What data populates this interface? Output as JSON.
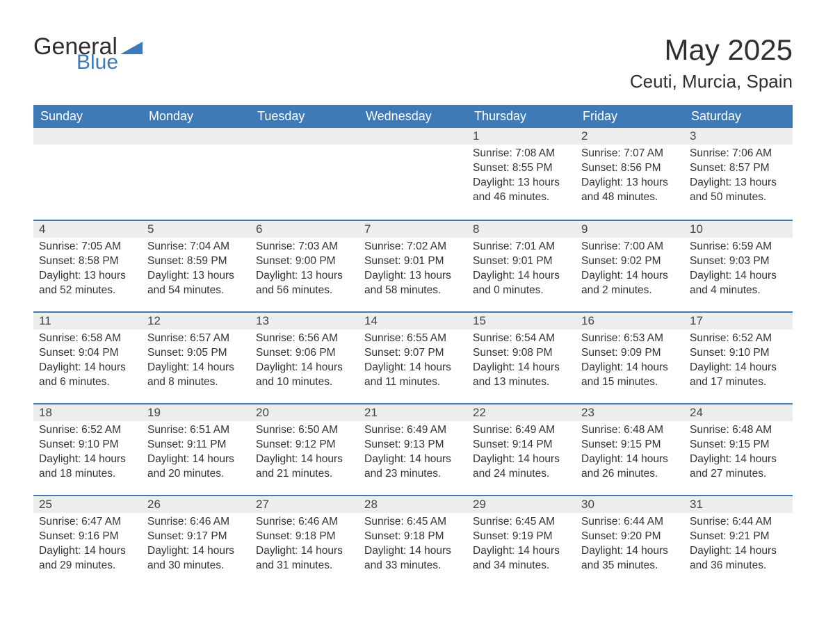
{
  "brand": {
    "text_general": "General",
    "text_blue": "Blue",
    "triangle_color": "#3e7ab8",
    "text_color_general": "#2f2f2f",
    "text_color_blue": "#3e7ab8"
  },
  "title": "May 2025",
  "subtitle": "Ceuti, Murcia, Spain",
  "colors": {
    "header_bg": "#3e7ab8",
    "header_text": "#ffffff",
    "daynum_bg": "#ededed",
    "body_text": "#333333",
    "week_divider": "#3e7ab8",
    "page_bg": "#ffffff"
  },
  "fontsize": {
    "title": 42,
    "subtitle": 26,
    "header": 18,
    "daynum": 17,
    "body": 15.5
  },
  "layout": {
    "columns": 7,
    "rows": 5,
    "first_day_column_index": 4
  },
  "weekdays": [
    "Sunday",
    "Monday",
    "Tuesday",
    "Wednesday",
    "Thursday",
    "Friday",
    "Saturday"
  ],
  "labels": {
    "sunrise": "Sunrise: ",
    "sunset": "Sunset: ",
    "daylight": "Daylight: "
  },
  "days": [
    {
      "n": "1",
      "sunrise": "7:08 AM",
      "sunset": "8:55 PM",
      "daylight": "13 hours and 46 minutes."
    },
    {
      "n": "2",
      "sunrise": "7:07 AM",
      "sunset": "8:56 PM",
      "daylight": "13 hours and 48 minutes."
    },
    {
      "n": "3",
      "sunrise": "7:06 AM",
      "sunset": "8:57 PM",
      "daylight": "13 hours and 50 minutes."
    },
    {
      "n": "4",
      "sunrise": "7:05 AM",
      "sunset": "8:58 PM",
      "daylight": "13 hours and 52 minutes."
    },
    {
      "n": "5",
      "sunrise": "7:04 AM",
      "sunset": "8:59 PM",
      "daylight": "13 hours and 54 minutes."
    },
    {
      "n": "6",
      "sunrise": "7:03 AM",
      "sunset": "9:00 PM",
      "daylight": "13 hours and 56 minutes."
    },
    {
      "n": "7",
      "sunrise": "7:02 AM",
      "sunset": "9:01 PM",
      "daylight": "13 hours and 58 minutes."
    },
    {
      "n": "8",
      "sunrise": "7:01 AM",
      "sunset": "9:01 PM",
      "daylight": "14 hours and 0 minutes."
    },
    {
      "n": "9",
      "sunrise": "7:00 AM",
      "sunset": "9:02 PM",
      "daylight": "14 hours and 2 minutes."
    },
    {
      "n": "10",
      "sunrise": "6:59 AM",
      "sunset": "9:03 PM",
      "daylight": "14 hours and 4 minutes."
    },
    {
      "n": "11",
      "sunrise": "6:58 AM",
      "sunset": "9:04 PM",
      "daylight": "14 hours and 6 minutes."
    },
    {
      "n": "12",
      "sunrise": "6:57 AM",
      "sunset": "9:05 PM",
      "daylight": "14 hours and 8 minutes."
    },
    {
      "n": "13",
      "sunrise": "6:56 AM",
      "sunset": "9:06 PM",
      "daylight": "14 hours and 10 minutes."
    },
    {
      "n": "14",
      "sunrise": "6:55 AM",
      "sunset": "9:07 PM",
      "daylight": "14 hours and 11 minutes."
    },
    {
      "n": "15",
      "sunrise": "6:54 AM",
      "sunset": "9:08 PM",
      "daylight": "14 hours and 13 minutes."
    },
    {
      "n": "16",
      "sunrise": "6:53 AM",
      "sunset": "9:09 PM",
      "daylight": "14 hours and 15 minutes."
    },
    {
      "n": "17",
      "sunrise": "6:52 AM",
      "sunset": "9:10 PM",
      "daylight": "14 hours and 17 minutes."
    },
    {
      "n": "18",
      "sunrise": "6:52 AM",
      "sunset": "9:10 PM",
      "daylight": "14 hours and 18 minutes."
    },
    {
      "n": "19",
      "sunrise": "6:51 AM",
      "sunset": "9:11 PM",
      "daylight": "14 hours and 20 minutes."
    },
    {
      "n": "20",
      "sunrise": "6:50 AM",
      "sunset": "9:12 PM",
      "daylight": "14 hours and 21 minutes."
    },
    {
      "n": "21",
      "sunrise": "6:49 AM",
      "sunset": "9:13 PM",
      "daylight": "14 hours and 23 minutes."
    },
    {
      "n": "22",
      "sunrise": "6:49 AM",
      "sunset": "9:14 PM",
      "daylight": "14 hours and 24 minutes."
    },
    {
      "n": "23",
      "sunrise": "6:48 AM",
      "sunset": "9:15 PM",
      "daylight": "14 hours and 26 minutes."
    },
    {
      "n": "24",
      "sunrise": "6:48 AM",
      "sunset": "9:15 PM",
      "daylight": "14 hours and 27 minutes."
    },
    {
      "n": "25",
      "sunrise": "6:47 AM",
      "sunset": "9:16 PM",
      "daylight": "14 hours and 29 minutes."
    },
    {
      "n": "26",
      "sunrise": "6:46 AM",
      "sunset": "9:17 PM",
      "daylight": "14 hours and 30 minutes."
    },
    {
      "n": "27",
      "sunrise": "6:46 AM",
      "sunset": "9:18 PM",
      "daylight": "14 hours and 31 minutes."
    },
    {
      "n": "28",
      "sunrise": "6:45 AM",
      "sunset": "9:18 PM",
      "daylight": "14 hours and 33 minutes."
    },
    {
      "n": "29",
      "sunrise": "6:45 AM",
      "sunset": "9:19 PM",
      "daylight": "14 hours and 34 minutes."
    },
    {
      "n": "30",
      "sunrise": "6:44 AM",
      "sunset": "9:20 PM",
      "daylight": "14 hours and 35 minutes."
    },
    {
      "n": "31",
      "sunrise": "6:44 AM",
      "sunset": "9:21 PM",
      "daylight": "14 hours and 36 minutes."
    }
  ]
}
